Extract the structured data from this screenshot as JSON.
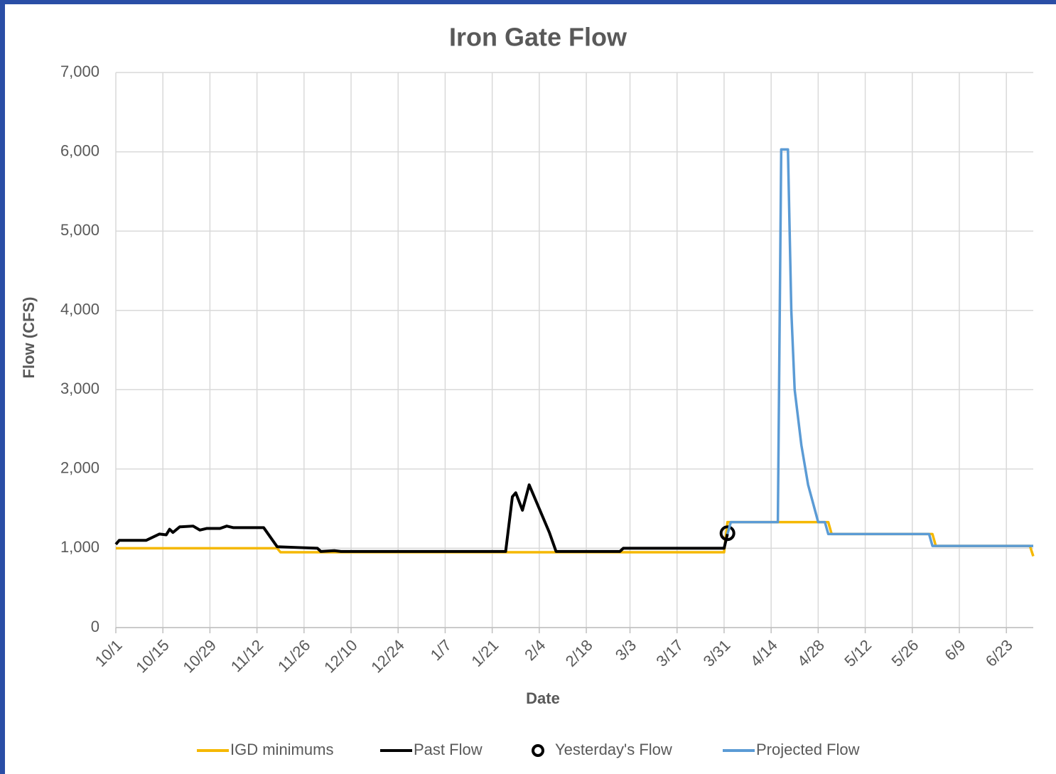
{
  "chart_data": {
    "type": "line",
    "title": "Iron Gate Flow",
    "xlabel": "Date",
    "ylabel": "Flow (CFS)",
    "xlim": [
      "10/1",
      "7/1"
    ],
    "xticks": [
      "10/1",
      "10/15",
      "10/29",
      "11/12",
      "11/26",
      "12/10",
      "12/24",
      "1/7",
      "1/21",
      "2/4",
      "2/18",
      "3/3",
      "3/17",
      "3/31",
      "4/14",
      "4/28",
      "5/12",
      "5/26",
      "6/9",
      "6/23"
    ],
    "ylim": [
      0,
      7000
    ],
    "yticks": [
      0,
      {
        "value": 1000,
        "label": "1,000"
      },
      {
        "value": 2000,
        "label": "2,000"
      },
      {
        "value": 3000,
        "label": "3,000"
      },
      {
        "value": 4000,
        "label": "4,000"
      },
      {
        "value": 5000,
        "label": "5,000"
      },
      {
        "value": 6000,
        "label": "6,000"
      },
      {
        "value": 7000,
        "label": "7,000"
      }
    ],
    "grid": true,
    "legend": "bottom",
    "series": [
      {
        "name": "IGD minimums",
        "color": "#f5b800",
        "mark": "line",
        "x": [
          "10/1",
          "11/18",
          "11/19",
          "3/31",
          "4/1",
          "5/1",
          "5/2",
          "6/1",
          "6/2",
          "6/30",
          "7/1"
        ],
        "values": [
          1000,
          1000,
          950,
          950,
          1330,
          1330,
          1180,
          1180,
          1030,
          1030,
          900
        ]
      },
      {
        "name": "Past Flow",
        "color": "#000000",
        "mark": "line",
        "x": [
          "10/1",
          "10/2",
          "10/10",
          "10/14",
          "10/16",
          "10/17",
          "10/18",
          "10/20",
          "10/24",
          "10/26",
          "10/28",
          "11/1",
          "11/3",
          "11/5",
          "11/14",
          "11/18",
          "11/24",
          "11/30",
          "12/1",
          "12/5",
          "12/7",
          "1/25",
          "1/27",
          "1/28",
          "1/30",
          "2/1",
          "2/4",
          "2/7",
          "2/9",
          "2/28",
          "3/1",
          "3/5",
          "3/31",
          "4/1"
        ],
        "values": [
          1050,
          1100,
          1100,
          1180,
          1170,
          1240,
          1200,
          1270,
          1280,
          1230,
          1250,
          1250,
          1280,
          1260,
          1260,
          1020,
          1010,
          1000,
          960,
          970,
          960,
          960,
          1650,
          1700,
          1480,
          1800,
          1500,
          1200,
          960,
          960,
          1000,
          1000,
          1000,
          1180
        ]
      },
      {
        "name": "Yesterday's Flow",
        "color": "#000000",
        "mark": "circle",
        "x": [
          "4/1"
        ],
        "values": [
          1190
        ]
      },
      {
        "name": "Projected Flow",
        "color": "#5b9bd5",
        "mark": "line",
        "x": [
          "4/1",
          "4/2",
          "4/16",
          "4/17",
          "4/19",
          "4/20",
          "4/21",
          "4/23",
          "4/25",
          "4/28",
          "4/30",
          "5/1",
          "5/31",
          "6/1",
          "7/1"
        ],
        "values": [
          1180,
          1330,
          1330,
          6030,
          6030,
          4000,
          3000,
          2300,
          1800,
          1330,
          1330,
          1180,
          1180,
          1030,
          1030
        ]
      }
    ]
  }
}
